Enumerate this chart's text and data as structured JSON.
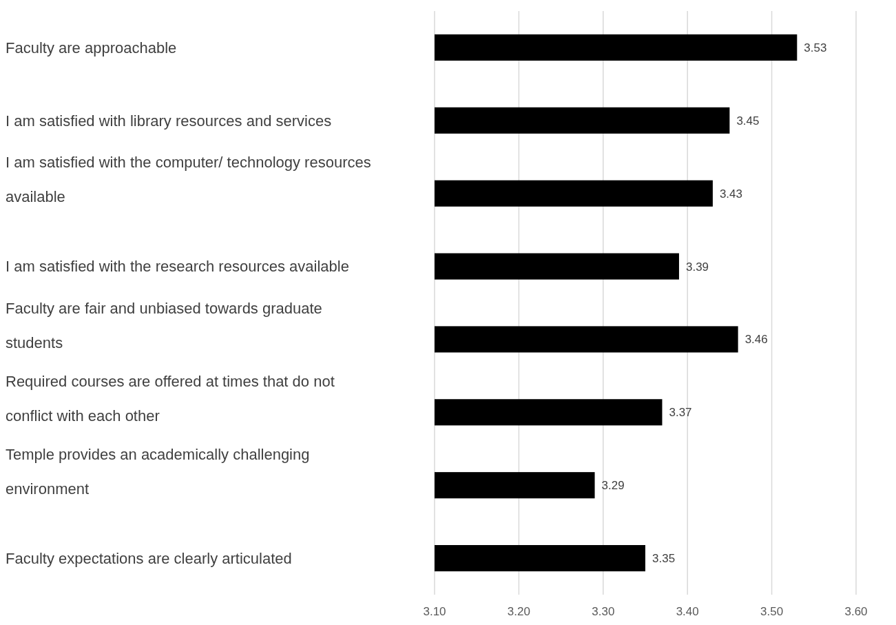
{
  "chart_data": {
    "type": "bar",
    "orientation": "horizontal",
    "categories": [
      "Faculty are approachable",
      "I am satisfied with library resources and services",
      "I am satisfied with the computer/ technology resources available",
      "I am satisfied with the research resources available",
      "Faculty are fair and unbiased towards graduate students",
      "Required courses are offered at times that do not conflict with each other",
      "Temple provides an academically challenging environment",
      "Faculty expectations are clearly articulated"
    ],
    "series": [
      {
        "color": "#000000",
        "values": [
          3.53,
          3.45,
          3.43,
          3.39,
          3.46,
          3.37,
          3.29,
          3.35
        ]
      }
    ],
    "xlim": [
      3.1,
      3.6
    ],
    "xticks": [
      {
        "value": 3.1,
        "label": "3.10"
      },
      {
        "value": 3.2,
        "label": "3.20"
      },
      {
        "value": 3.3,
        "label": "3.30"
      },
      {
        "value": 3.4,
        "label": "3.40"
      },
      {
        "value": 3.5,
        "label": "3.50"
      },
      {
        "value": 3.6,
        "label": "3.60"
      }
    ],
    "grid": "x",
    "data_labels": true
  }
}
